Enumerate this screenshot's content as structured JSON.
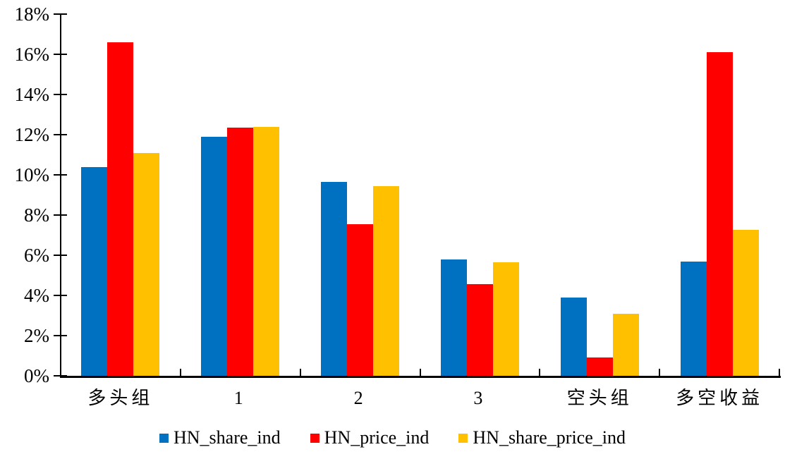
{
  "chart_data": {
    "type": "bar",
    "title": "",
    "xlabel": "",
    "ylabel": "",
    "categories": [
      "多头组",
      "1",
      "2",
      "3",
      "空头组",
      "多空收益"
    ],
    "series": [
      {
        "name": "HN_share_ind",
        "color": "#0070C0",
        "values": [
          10.4,
          11.9,
          9.65,
          5.8,
          3.9,
          5.7
        ]
      },
      {
        "name": "HN_price_ind",
        "color": "#FF0000",
        "values": [
          16.6,
          12.35,
          7.55,
          4.55,
          0.9,
          16.1
        ]
      },
      {
        "name": "HN_share_price_ind",
        "color": "#FFC000",
        "values": [
          11.1,
          12.4,
          9.45,
          5.65,
          3.1,
          7.25
        ]
      }
    ],
    "ylim": [
      0,
      18
    ],
    "ytick_step": 2,
    "ytick_labels": [
      "0%",
      "2%",
      "4%",
      "6%",
      "8%",
      "10%",
      "12%",
      "14%",
      "16%",
      "18%"
    ],
    "value_unit": "percent",
    "grid": false,
    "gridlines": "none",
    "legend_position": "bottom",
    "background_color": "#FFFFFF",
    "axis_color": "#000000",
    "text_color": "#000000"
  }
}
